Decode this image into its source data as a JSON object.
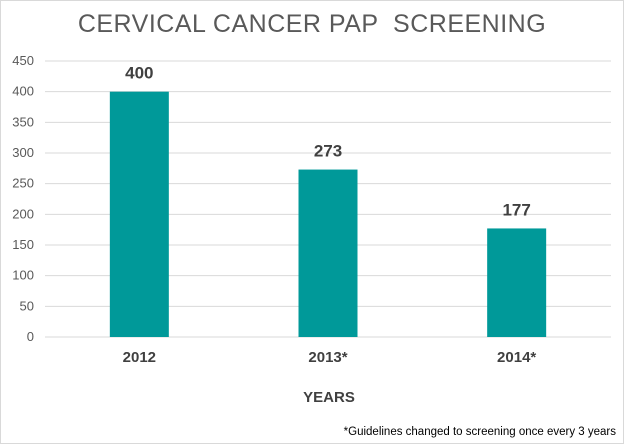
{
  "chart_data": {
    "type": "bar",
    "title": "CERVICAL CANCER PAP  SCREENING",
    "categories": [
      "2012",
      "2013*",
      "2014*"
    ],
    "values": [
      400,
      273,
      177
    ],
    "xlabel": "YEARS",
    "ylabel": "",
    "ylim": [
      0,
      450
    ],
    "yticks": [
      0,
      50,
      100,
      150,
      200,
      250,
      300,
      350,
      400,
      450
    ],
    "grid": true,
    "legend": "none",
    "bar_color": "#009999",
    "footnote": "*Guidelines changed to screening once every 3 years"
  }
}
